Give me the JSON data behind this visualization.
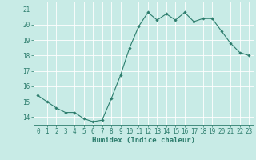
{
  "x": [
    0,
    1,
    2,
    3,
    4,
    5,
    6,
    7,
    8,
    9,
    10,
    11,
    12,
    13,
    14,
    15,
    16,
    17,
    18,
    19,
    20,
    21,
    22,
    23
  ],
  "y": [
    15.4,
    15.0,
    14.6,
    14.3,
    14.3,
    13.9,
    13.7,
    13.8,
    15.2,
    16.7,
    18.5,
    19.9,
    20.8,
    20.3,
    20.7,
    20.3,
    20.8,
    20.2,
    20.4,
    20.4,
    19.6,
    18.8,
    18.2,
    18.0
  ],
  "line_color": "#2d7d6d",
  "marker": "D",
  "marker_size": 1.8,
  "bg_color": "#c8ebe6",
  "grid_color": "#ffffff",
  "xlabel": "Humidex (Indice chaleur)",
  "xlim": [
    -0.5,
    23.5
  ],
  "ylim": [
    13.5,
    21.5
  ],
  "yticks": [
    14,
    15,
    16,
    17,
    18,
    19,
    20,
    21
  ],
  "xticks": [
    0,
    1,
    2,
    3,
    4,
    5,
    6,
    7,
    8,
    9,
    10,
    11,
    12,
    13,
    14,
    15,
    16,
    17,
    18,
    19,
    20,
    21,
    22,
    23
  ],
  "tick_color": "#2d7d6d",
  "label_fontsize": 6.5,
  "tick_fontsize": 5.5
}
